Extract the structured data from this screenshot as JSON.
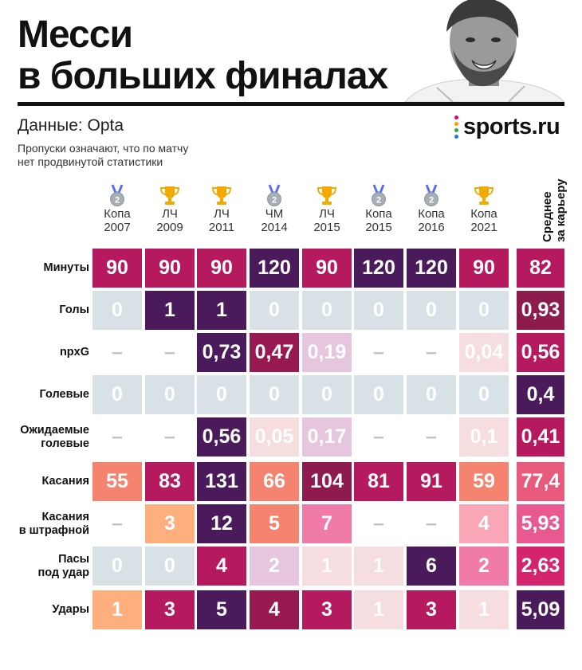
{
  "header": {
    "title_line1": "Месси",
    "title_line2": "в больших финалах",
    "source": "Данные: Opta",
    "note_line1": "Пропуски означают, что по матчу",
    "note_line2": "нет продвинутой статистики",
    "logo": "sports.ru",
    "logo_dot_colors": [
      "#e4007c",
      "#ff9900",
      "#22aa44",
      "#2277ee"
    ]
  },
  "columns": [
    {
      "line1": "Копа",
      "line2": "2007",
      "icon": "silver-medal-icon"
    },
    {
      "line1": "ЛЧ",
      "line2": "2009",
      "icon": "trophy-icon"
    },
    {
      "line1": "ЛЧ",
      "line2": "2011",
      "icon": "trophy-icon"
    },
    {
      "line1": "ЧМ",
      "line2": "2014",
      "icon": "silver-medal-icon"
    },
    {
      "line1": "ЛЧ",
      "line2": "2015",
      "icon": "trophy-icon"
    },
    {
      "line1": "Копа",
      "line2": "2015",
      "icon": "silver-medal-icon"
    },
    {
      "line1": "Копа",
      "line2": "2016",
      "icon": "silver-medal-icon"
    },
    {
      "line1": "Копа",
      "line2": "2021",
      "icon": "trophy-icon"
    }
  ],
  "avg_header": {
    "line1": "Среднее",
    "line2": "за карьеру"
  },
  "palette": {
    "empty": "#d8e2e6",
    "trophy_gold": "#f2a900",
    "medal_silver": "#a7aeb4",
    "medal_ribbon": "#5b6ef0"
  },
  "chart_data": {
    "type": "table",
    "title": "Месси в больших финалах",
    "columns": [
      "Копа 2007",
      "ЛЧ 2009",
      "ЛЧ 2011",
      "ЧМ 2014",
      "ЛЧ 2015",
      "Копа 2015",
      "Копа 2016",
      "Копа 2021",
      "Среднее за карьеру"
    ],
    "rows": [
      {
        "label_line1": "Минуты",
        "label_line2": "",
        "values": [
          "90",
          "90",
          "90",
          "120",
          "90",
          "120",
          "120",
          "90",
          "82"
        ],
        "colors": [
          "#b5195e",
          "#b5195e",
          "#b5195e",
          "#4a1a5a",
          "#b5195e",
          "#4a1a5a",
          "#4a1a5a",
          "#b5195e",
          "#b5195e"
        ],
        "text_colors": [
          "#ffffff",
          "#ffffff",
          "#ffffff",
          "#ffffff",
          "#ffffff",
          "#ffffff",
          "#ffffff",
          "#ffffff",
          "#ffffff"
        ]
      },
      {
        "label_line1": "Голы",
        "label_line2": "",
        "values": [
          "0",
          "1",
          "1",
          "0",
          "0",
          "0",
          "0",
          "0",
          "0,93"
        ],
        "colors": [
          "#d8e2e6",
          "#4a1a5a",
          "#4a1a5a",
          "#d8e2e6",
          "#d8e2e6",
          "#d8e2e6",
          "#d8e2e6",
          "#d8e2e6",
          "#8e1b4e"
        ],
        "text_colors": [
          "#ffffff",
          "#ffffff",
          "#ffffff",
          "#ffffff",
          "#ffffff",
          "#ffffff",
          "#ffffff",
          "#ffffff",
          "#ffffff"
        ]
      },
      {
        "label_line1": "npxG",
        "label_line2": "",
        "values": [
          "–",
          "–",
          "0,73",
          "0,47",
          "0,19",
          "–",
          "–",
          "0,04",
          "0,56"
        ],
        "colors": [
          "",
          "",
          "#4a1a5a",
          "#96194f",
          "#e6c5df",
          "",
          "",
          "#f6dde0",
          "#b5195e"
        ],
        "text_colors": [
          "#bfc6ca",
          "#bfc6ca",
          "#ffffff",
          "#ffffff",
          "#ffffff",
          "#bfc6ca",
          "#bfc6ca",
          "#ffffff",
          "#ffffff"
        ]
      },
      {
        "label_line1": "Голевые",
        "label_line2": "",
        "values": [
          "0",
          "0",
          "0",
          "0",
          "0",
          "0",
          "0",
          "0",
          "0,4"
        ],
        "colors": [
          "#d8e2e6",
          "#d8e2e6",
          "#d8e2e6",
          "#d8e2e6",
          "#d8e2e6",
          "#d8e2e6",
          "#d8e2e6",
          "#d8e2e6",
          "#4a1a5a"
        ],
        "text_colors": [
          "#ffffff",
          "#ffffff",
          "#ffffff",
          "#ffffff",
          "#ffffff",
          "#ffffff",
          "#ffffff",
          "#ffffff",
          "#ffffff"
        ]
      },
      {
        "label_line1": "Ожидаемые",
        "label_line2": "голевые",
        "values": [
          "–",
          "–",
          "0,56",
          "0,05",
          "0,17",
          "–",
          "–",
          "0,1",
          "0,41"
        ],
        "colors": [
          "",
          "",
          "#4a1a5a",
          "#f6dde0",
          "#e6c5df",
          "",
          "",
          "#f6dde0",
          "#b5195e"
        ],
        "text_colors": [
          "#bfc6ca",
          "#bfc6ca",
          "#ffffff",
          "#ffffff",
          "#ffffff",
          "#bfc6ca",
          "#bfc6ca",
          "#ffffff",
          "#ffffff"
        ]
      },
      {
        "label_line1": "Касания",
        "label_line2": "",
        "values": [
          "55",
          "83",
          "131",
          "66",
          "104",
          "81",
          "91",
          "59",
          "77,4"
        ],
        "colors": [
          "#f4846f",
          "#b5195e",
          "#4a1a5a",
          "#f4846f",
          "#8e1b4e",
          "#b5195e",
          "#b5195e",
          "#f4846f",
          "#e85a7c"
        ],
        "text_colors": [
          "#ffffff",
          "#ffffff",
          "#ffffff",
          "#ffffff",
          "#ffffff",
          "#ffffff",
          "#ffffff",
          "#ffffff",
          "#ffffff"
        ]
      },
      {
        "label_line1": "Касания",
        "label_line2": "в штрафной",
        "values": [
          "–",
          "3",
          "12",
          "5",
          "7",
          "–",
          "–",
          "4",
          "5,93"
        ],
        "colors": [
          "",
          "#ffae7e",
          "#4a1a5a",
          "#f4846f",
          "#f07aa8",
          "",
          "",
          "#f9a6b6",
          "#e85a8f"
        ],
        "text_colors": [
          "#bfc6ca",
          "#ffffff",
          "#ffffff",
          "#ffffff",
          "#ffffff",
          "#bfc6ca",
          "#bfc6ca",
          "#ffffff",
          "#ffffff"
        ]
      },
      {
        "label_line1": "Пасы",
        "label_line2": "под удар",
        "values": [
          "0",
          "0",
          "4",
          "2",
          "1",
          "1",
          "6",
          "2",
          "2,63"
        ],
        "colors": [
          "#d8e2e6",
          "#d8e2e6",
          "#b5195e",
          "#e6c5df",
          "#f6dde0",
          "#f6dde0",
          "#4a1a5a",
          "#f07aa8",
          "#d3246d"
        ],
        "text_colors": [
          "#ffffff",
          "#ffffff",
          "#ffffff",
          "#ffffff",
          "#ffffff",
          "#ffffff",
          "#ffffff",
          "#ffffff",
          "#ffffff"
        ]
      },
      {
        "label_line1": "Удары",
        "label_line2": "",
        "values": [
          "1",
          "3",
          "5",
          "4",
          "3",
          "1",
          "3",
          "1",
          "5,09"
        ],
        "colors": [
          "#ffae7e",
          "#b5195e",
          "#4a1a5a",
          "#96194f",
          "#b5195e",
          "#f6dde0",
          "#b5195e",
          "#f6dde0",
          "#4a1a5a"
        ],
        "text_colors": [
          "#ffffff",
          "#ffffff",
          "#ffffff",
          "#ffffff",
          "#ffffff",
          "#ffffff",
          "#ffffff",
          "#ffffff",
          "#ffffff"
        ]
      }
    ]
  }
}
